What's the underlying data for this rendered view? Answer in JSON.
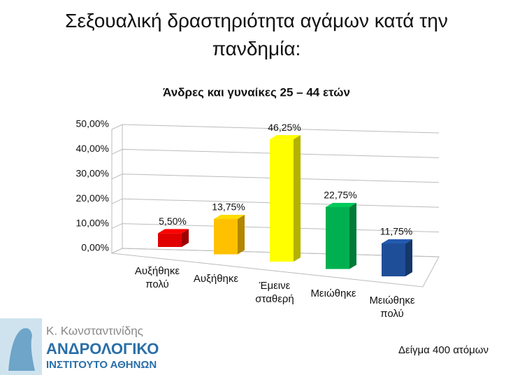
{
  "title": "Σεξουαλική δραστηριότητα αγάμων κατά την πανδημία:",
  "chart_data": {
    "type": "bar3d",
    "title": "Άνδρες και γυναίκες 25 – 44 ετών",
    "categories": [
      "Αυξήθηκε πολύ",
      "Αυξήθηκε",
      "Έμεινε σταθερή",
      "Μειώθηκε",
      "Μειώθηκε πολύ"
    ],
    "values": [
      5.5,
      13.75,
      46.25,
      22.75,
      11.75
    ],
    "value_labels": [
      "5,50%",
      "13,75%",
      "46,25%",
      "22,75%",
      "11,75%"
    ],
    "colors": [
      "#e00000",
      "#ffc000",
      "#ffff00",
      "#00b050",
      "#1f4e99"
    ],
    "ylim": [
      0,
      50
    ],
    "yticks": [
      {
        "value": 0,
        "label": "0,00%"
      },
      {
        "value": 10,
        "label": "10,00%"
      },
      {
        "value": 20,
        "label": "20,00%"
      },
      {
        "value": 30,
        "label": "30,00%"
      },
      {
        "value": 40,
        "label": "40,00%"
      },
      {
        "value": 50,
        "label": "50,00%"
      }
    ],
    "grid": true
  },
  "footnote": "Δείγμα 400 ατόμων",
  "logo": {
    "name": "Κ. Κωνσταντινίδης",
    "line1": "ΑΝΔΡΟΛΟΓΙΚΟ",
    "line2": "ΙΝΣΤΙΤΟΥΤΟ ΑΘΗΝΩΝ"
  }
}
